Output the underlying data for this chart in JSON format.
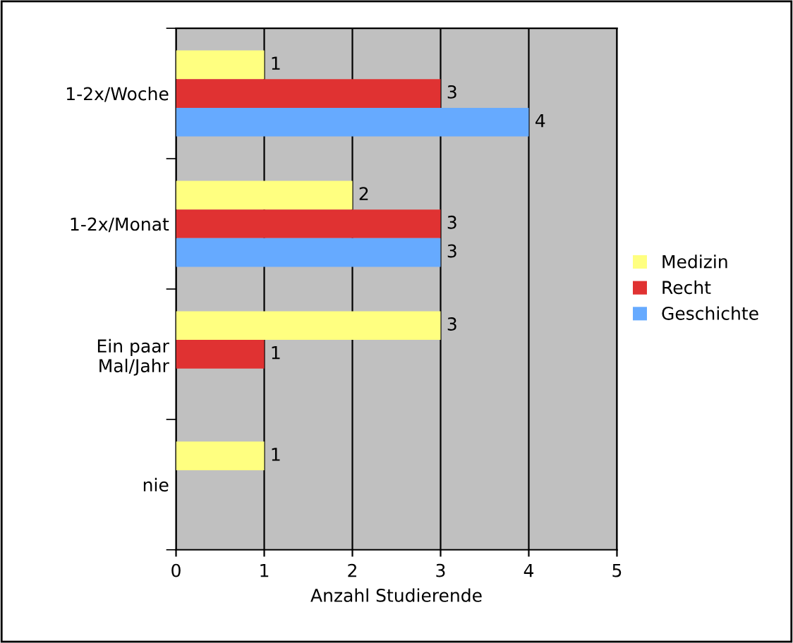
{
  "chart_data": {
    "type": "bar",
    "orientation": "horizontal",
    "xlabel": "Anzahl Studierende",
    "categories": [
      "1-2x/Woche",
      "1-2x/Monat",
      "Ein paar\nMal/Jahr",
      "nie"
    ],
    "series": [
      {
        "name": "Medizin",
        "color": "#ffff80",
        "values": [
          1,
          2,
          3,
          1
        ]
      },
      {
        "name": "Recht",
        "color": "#e03232",
        "values": [
          3,
          3,
          1,
          null
        ]
      },
      {
        "name": "Geschichte",
        "color": "#66aaff",
        "values": [
          4,
          3,
          null,
          null
        ]
      }
    ],
    "xlim": [
      0,
      5
    ],
    "xticks": [
      0,
      1,
      2,
      3,
      4,
      5
    ],
    "grid": "x",
    "legend": "right",
    "data_labels": true
  }
}
